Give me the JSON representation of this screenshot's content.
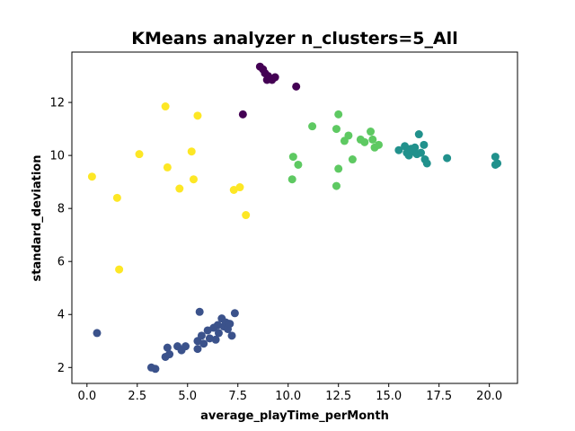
{
  "chart_data": {
    "type": "scatter",
    "title": "KMeans analyzer n_clusters=5_All",
    "xlabel": "average_playTime_perMonth",
    "ylabel": "standard_deviation",
    "xlim": [
      -0.75,
      21.4
    ],
    "ylim": [
      1.4,
      13.9
    ],
    "x_ticks": [
      0.0,
      2.5,
      5.0,
      7.5,
      10.0,
      12.5,
      15.0,
      17.5,
      20.0
    ],
    "x_tick_labels": [
      "0.0",
      "2.5",
      "5.0",
      "7.5",
      "10.0",
      "12.5",
      "15.0",
      "17.5",
      "20.0"
    ],
    "y_ticks": [
      2,
      4,
      6,
      8,
      10,
      12
    ],
    "y_tick_labels": [
      "2",
      "4",
      "6",
      "8",
      "10",
      "12"
    ],
    "grid": false,
    "legend": "none",
    "series": [
      {
        "color": "#440154",
        "points": [
          [
            8.6,
            13.35
          ],
          [
            8.75,
            13.25
          ],
          [
            8.85,
            13.1
          ],
          [
            9.0,
            13.0
          ],
          [
            9.1,
            12.9
          ],
          [
            9.2,
            12.85
          ],
          [
            9.35,
            12.95
          ],
          [
            8.95,
            12.85
          ],
          [
            10.4,
            12.6
          ],
          [
            7.75,
            11.55
          ]
        ]
      },
      {
        "color": "#3b528b",
        "points": [
          [
            0.5,
            3.3
          ],
          [
            3.2,
            2.0
          ],
          [
            3.4,
            1.95
          ],
          [
            3.9,
            2.4
          ],
          [
            4.0,
            2.75
          ],
          [
            4.1,
            2.5
          ],
          [
            4.5,
            2.8
          ],
          [
            4.7,
            2.65
          ],
          [
            4.9,
            2.8
          ],
          [
            5.5,
            3.0
          ],
          [
            5.5,
            2.7
          ],
          [
            5.6,
            4.1
          ],
          [
            5.7,
            3.2
          ],
          [
            5.8,
            2.9
          ],
          [
            6.0,
            3.4
          ],
          [
            6.1,
            3.1
          ],
          [
            6.3,
            3.5
          ],
          [
            6.4,
            3.05
          ],
          [
            6.5,
            3.6
          ],
          [
            6.55,
            3.3
          ],
          [
            6.7,
            3.85
          ],
          [
            6.8,
            3.55
          ],
          [
            6.9,
            3.7
          ],
          [
            7.0,
            3.45
          ],
          [
            7.1,
            3.65
          ],
          [
            7.2,
            3.2
          ],
          [
            7.35,
            4.05
          ]
        ]
      },
      {
        "color": "#21918c",
        "points": [
          [
            15.5,
            10.2
          ],
          [
            15.8,
            10.35
          ],
          [
            15.9,
            10.1
          ],
          [
            16.0,
            10.0
          ],
          [
            16.1,
            10.25
          ],
          [
            16.2,
            10.15
          ],
          [
            16.3,
            10.3
          ],
          [
            16.4,
            10.05
          ],
          [
            16.5,
            10.8
          ],
          [
            16.6,
            10.1
          ],
          [
            16.75,
            10.4
          ],
          [
            16.8,
            9.85
          ],
          [
            16.9,
            9.7
          ],
          [
            17.9,
            9.9
          ],
          [
            20.3,
            9.95
          ],
          [
            20.3,
            9.65
          ],
          [
            20.4,
            9.7
          ]
        ]
      },
      {
        "color": "#5ec962",
        "points": [
          [
            10.2,
            9.1
          ],
          [
            10.25,
            9.95
          ],
          [
            10.5,
            9.65
          ],
          [
            11.2,
            11.1
          ],
          [
            12.4,
            11.0
          ],
          [
            12.5,
            11.55
          ],
          [
            12.5,
            9.5
          ],
          [
            12.4,
            8.85
          ],
          [
            12.8,
            10.55
          ],
          [
            13.0,
            10.75
          ],
          [
            13.2,
            9.85
          ],
          [
            13.6,
            10.6
          ],
          [
            13.8,
            10.5
          ],
          [
            14.1,
            10.9
          ],
          [
            14.2,
            10.6
          ],
          [
            14.3,
            10.3
          ],
          [
            14.5,
            10.4
          ]
        ]
      },
      {
        "color": "#fde725",
        "points": [
          [
            0.25,
            9.2
          ],
          [
            1.5,
            8.4
          ],
          [
            1.6,
            5.7
          ],
          [
            2.6,
            10.05
          ],
          [
            3.9,
            11.85
          ],
          [
            4.0,
            9.55
          ],
          [
            4.6,
            8.75
          ],
          [
            5.2,
            10.15
          ],
          [
            5.3,
            9.1
          ],
          [
            5.5,
            11.5
          ],
          [
            7.3,
            8.7
          ],
          [
            7.6,
            8.8
          ],
          [
            7.9,
            7.75
          ]
        ]
      }
    ]
  }
}
